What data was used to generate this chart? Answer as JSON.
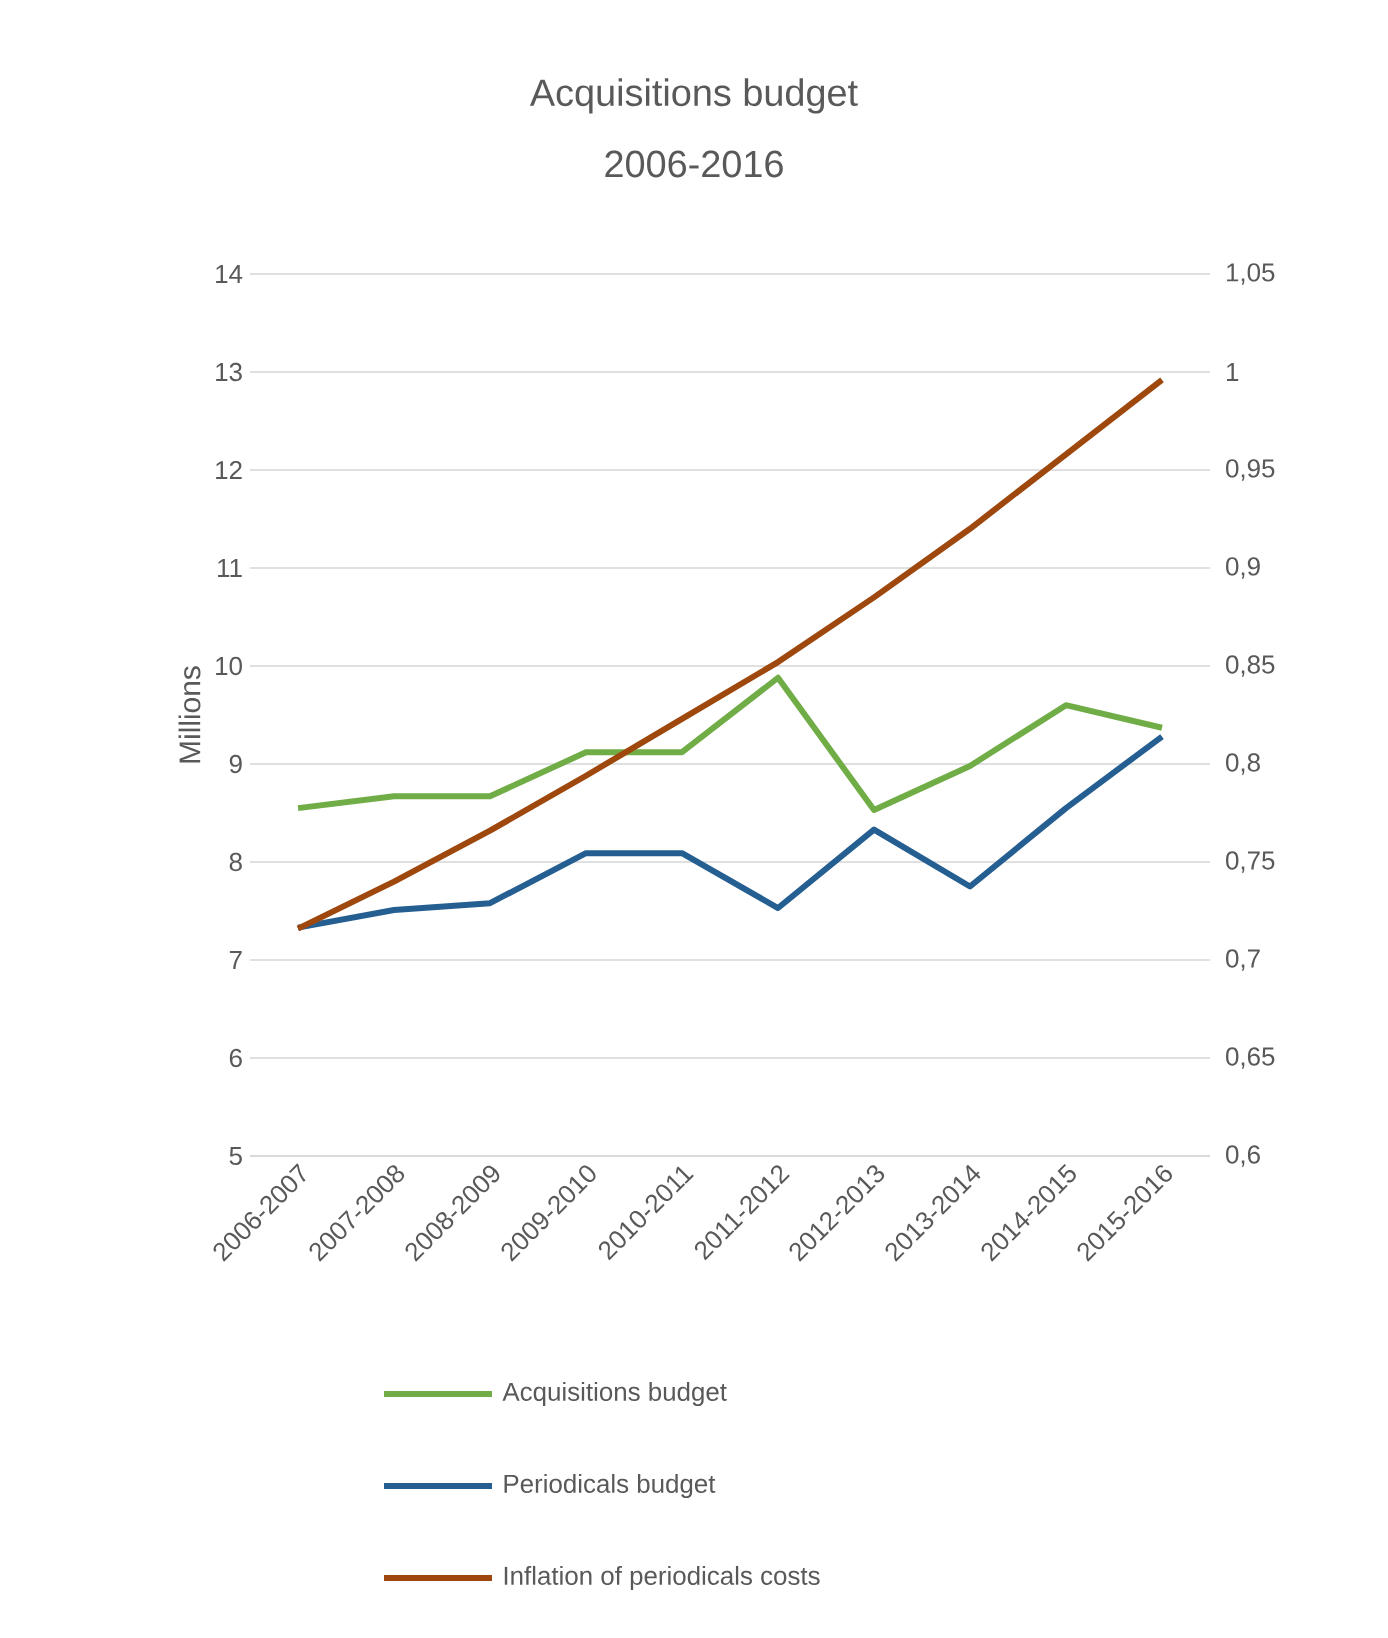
{
  "chart_data": {
    "type": "line",
    "title": "Acquisitions budget",
    "subtitle": "2006-2016",
    "ylabel": "Millions",
    "categories": [
      "2006-2007",
      "2007-2008",
      "2008-2009",
      "2009-2010",
      "2010-2011",
      "2011-2012",
      "2012-2013",
      "2013-2014",
      "2014-2015",
      "2015-2016"
    ],
    "series": [
      {
        "name": "Acquisitions budget",
        "color": "#70ad47",
        "values": [
          8.55,
          8.67,
          8.67,
          9.12,
          9.12,
          9.88,
          8.53,
          8.98,
          9.6,
          9.37
        ]
      },
      {
        "name": "Periodicals budget",
        "color": "#255e91",
        "values": [
          7.33,
          7.51,
          7.58,
          8.09,
          8.09,
          7.53,
          8.33,
          7.75,
          8.55,
          9.28
        ]
      },
      {
        "name": "Inflation of periodicals costs",
        "color": "#9e480e",
        "axis": "y2",
        "values": [
          0.716,
          0.74,
          0.766,
          0.794,
          0.823,
          0.852,
          0.885,
          0.92,
          0.958,
          0.996
        ]
      }
    ],
    "ylim": [
      5,
      14
    ],
    "yticks": [
      5,
      6,
      7,
      8,
      9,
      10,
      11,
      12,
      13,
      14
    ],
    "y2lim": [
      0.6,
      1.05
    ],
    "y2ticks": [
      {
        "value": 0.6,
        "label": "0,6"
      },
      {
        "value": 0.65,
        "label": "0,65"
      },
      {
        "value": 0.7,
        "label": "0,7"
      },
      {
        "value": 0.75,
        "label": "0,75"
      },
      {
        "value": 0.8,
        "label": "0,8"
      },
      {
        "value": 0.85,
        "label": "0,85"
      },
      {
        "value": 0.9,
        "label": "0,9"
      },
      {
        "value": 0.95,
        "label": "0,95"
      },
      {
        "value": 1,
        "label": "1"
      },
      {
        "value": 1.05,
        "label": "1,05"
      }
    ],
    "grid": "y",
    "legend": "bottom"
  }
}
